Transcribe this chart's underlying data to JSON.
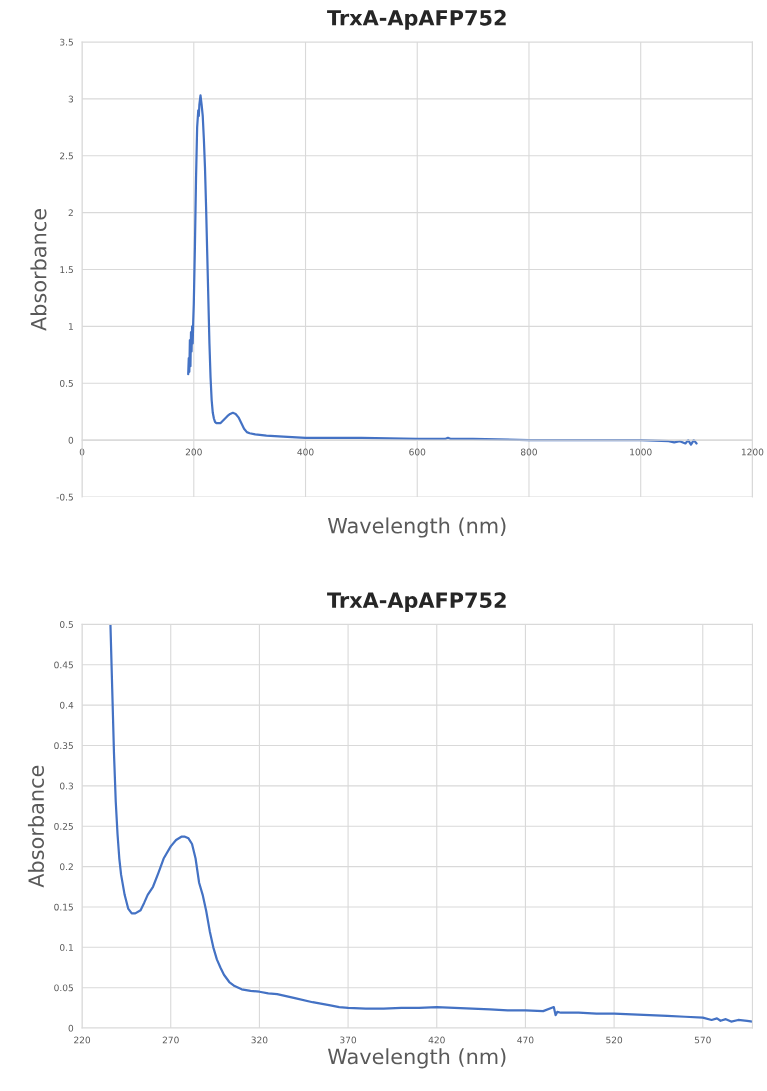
{
  "chart_data": [
    {
      "type": "line",
      "title": "TrxA-ApAFP752",
      "xlabel": "Wavelength (nm)",
      "ylabel": "Absorbance",
      "xlim": [
        0,
        1200
      ],
      "xticks": [
        0,
        200,
        400,
        600,
        800,
        1000,
        1200
      ],
      "ylim": [
        -0.5,
        3.5
      ],
      "yticks": [
        -0.5,
        0,
        0.5,
        1,
        1.5,
        2,
        2.5,
        3,
        3.5
      ],
      "grid": true,
      "series": [
        {
          "color": "#4472c4",
          "x": [
            190,
            191,
            192,
            193,
            194,
            195,
            196,
            197,
            198,
            199,
            200,
            202,
            204,
            206,
            208,
            209,
            210,
            212,
            214,
            216,
            218,
            220,
            222,
            224,
            226,
            228,
            230,
            232,
            234,
            236,
            238,
            240,
            244,
            248,
            252,
            256,
            260,
            265,
            270,
            275,
            280,
            285,
            290,
            295,
            300,
            310,
            330,
            360,
            400,
            450,
            500,
            600,
            650,
            655,
            660,
            700,
            800,
            900,
            1000,
            1050,
            1060,
            1070,
            1080,
            1085,
            1090,
            1095,
            1100
          ],
          "values": [
            0.58,
            0.72,
            0.6,
            0.88,
            0.65,
            0.95,
            0.78,
            1.0,
            0.85,
            1.05,
            1.2,
            1.7,
            2.3,
            2.75,
            2.9,
            2.85,
            2.95,
            3.03,
            2.95,
            2.85,
            2.65,
            2.4,
            2.05,
            1.65,
            1.25,
            0.85,
            0.55,
            0.35,
            0.24,
            0.19,
            0.16,
            0.15,
            0.15,
            0.15,
            0.17,
            0.19,
            0.21,
            0.23,
            0.24,
            0.23,
            0.2,
            0.15,
            0.1,
            0.07,
            0.06,
            0.05,
            0.04,
            0.03,
            0.02,
            0.02,
            0.02,
            0.01,
            0.01,
            0.02,
            0.01,
            0.01,
            0.0,
            0.0,
            0.0,
            -0.01,
            -0.02,
            -0.01,
            -0.03,
            0.0,
            -0.04,
            0.0,
            -0.03
          ]
        }
      ]
    },
    {
      "type": "line",
      "title": "TrxA-ApAFP752",
      "xlabel": "Wavelength (nm)",
      "ylabel": "Absorbance",
      "xlim": [
        220,
        598
      ],
      "xticks": [
        220,
        270,
        320,
        370,
        420,
        470,
        520,
        570
      ],
      "ylim": [
        0,
        0.5
      ],
      "yticks": [
        0,
        0.05,
        0.1,
        0.15,
        0.2,
        0.25,
        0.3,
        0.35,
        0.4,
        0.45,
        0.5
      ],
      "grid": true,
      "series": [
        {
          "color": "#4472c4",
          "x": [
            236,
            237,
            238,
            239,
            240,
            241,
            242,
            244,
            246,
            248,
            250,
            253,
            255,
            257,
            260,
            263,
            266,
            270,
            273,
            276,
            278,
            280,
            282,
            284,
            286,
            288,
            290,
            292,
            294,
            296,
            298,
            300,
            303,
            306,
            310,
            315,
            320,
            325,
            330,
            340,
            350,
            360,
            365,
            370,
            380,
            390,
            400,
            410,
            420,
            430,
            440,
            450,
            460,
            470,
            480,
            486,
            487,
            488,
            490,
            500,
            510,
            520,
            530,
            540,
            550,
            560,
            570,
            575,
            578,
            580,
            583,
            586,
            590,
            595,
            598
          ],
          "values": [
            0.5,
            0.42,
            0.34,
            0.28,
            0.24,
            0.21,
            0.19,
            0.165,
            0.148,
            0.142,
            0.142,
            0.146,
            0.155,
            0.165,
            0.175,
            0.192,
            0.21,
            0.225,
            0.233,
            0.237,
            0.237,
            0.235,
            0.228,
            0.21,
            0.18,
            0.165,
            0.145,
            0.12,
            0.1,
            0.085,
            0.075,
            0.066,
            0.057,
            0.052,
            0.048,
            0.046,
            0.045,
            0.043,
            0.042,
            0.037,
            0.032,
            0.028,
            0.026,
            0.025,
            0.024,
            0.024,
            0.025,
            0.025,
            0.026,
            0.025,
            0.024,
            0.023,
            0.022,
            0.022,
            0.021,
            0.026,
            0.016,
            0.02,
            0.019,
            0.019,
            0.018,
            0.018,
            0.017,
            0.016,
            0.015,
            0.014,
            0.013,
            0.01,
            0.012,
            0.009,
            0.011,
            0.008,
            0.01,
            0.009,
            0.008
          ]
        }
      ]
    }
  ]
}
